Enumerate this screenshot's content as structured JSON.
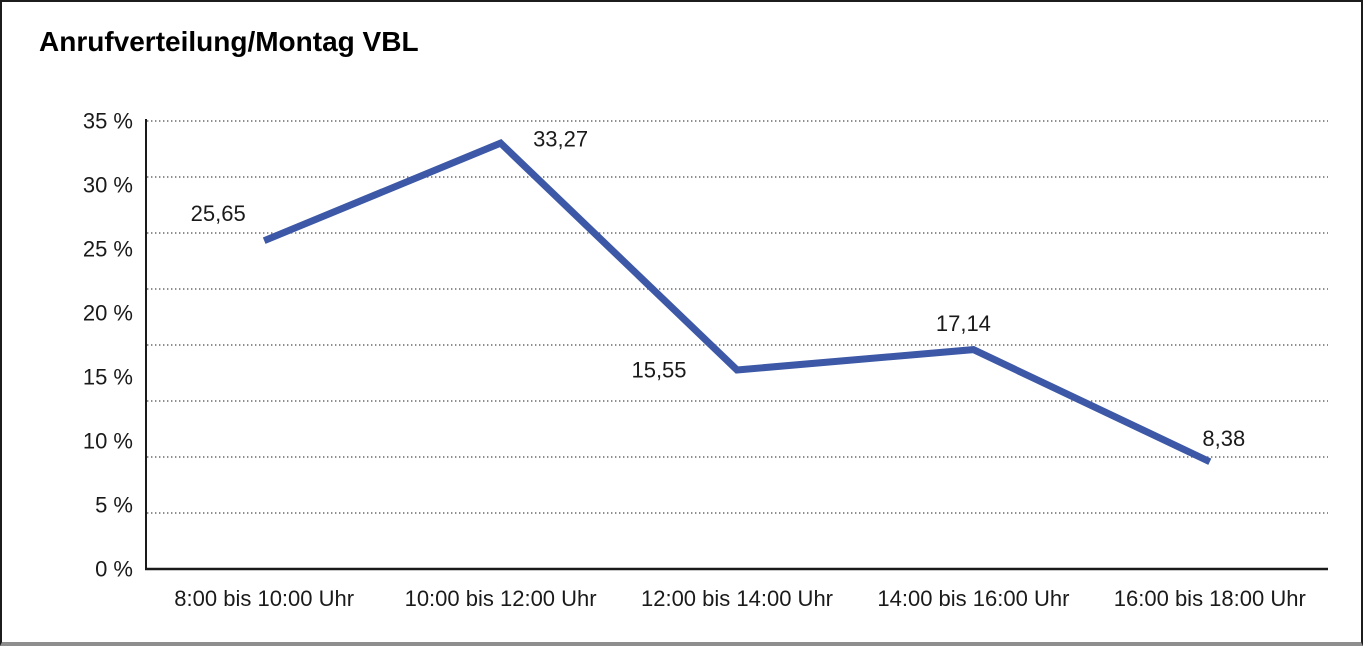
{
  "window": {
    "background": "#ffffff",
    "border_color": "#1c1c1c",
    "bottom_edge_color": "#8e8e8e"
  },
  "chart_data": {
    "type": "line",
    "title": "Anrufverteilung/Montag VBL",
    "categories": [
      "8:00 bis 10:00 Uhr",
      "10:00 bis 12:00 Uhr",
      "12:00 bis 14:00 Uhr",
      "14:00 bis 16:00 Uhr",
      "16:00 bis 18:00 Uhr"
    ],
    "values": [
      25.65,
      33.27,
      15.55,
      17.14,
      8.38
    ],
    "value_labels": [
      "25,65",
      "33,27",
      "15,55",
      "17,14",
      "8,38"
    ],
    "xlabel": "",
    "ylabel": "",
    "ylim": [
      0,
      35
    ],
    "y_tick_labels": [
      "35 %",
      "30 %",
      "25 %",
      "20 %",
      "15 %",
      "10 %",
      "5 %",
      "0 %"
    ],
    "grid": "horizontal-dotted",
    "grid_intervals": 8,
    "legend": "none",
    "line_color": "#3C58A6",
    "axis_color": "#1a1a1a",
    "gridline_color": "#4a4a4a",
    "text_color": "#1a1a1a"
  }
}
